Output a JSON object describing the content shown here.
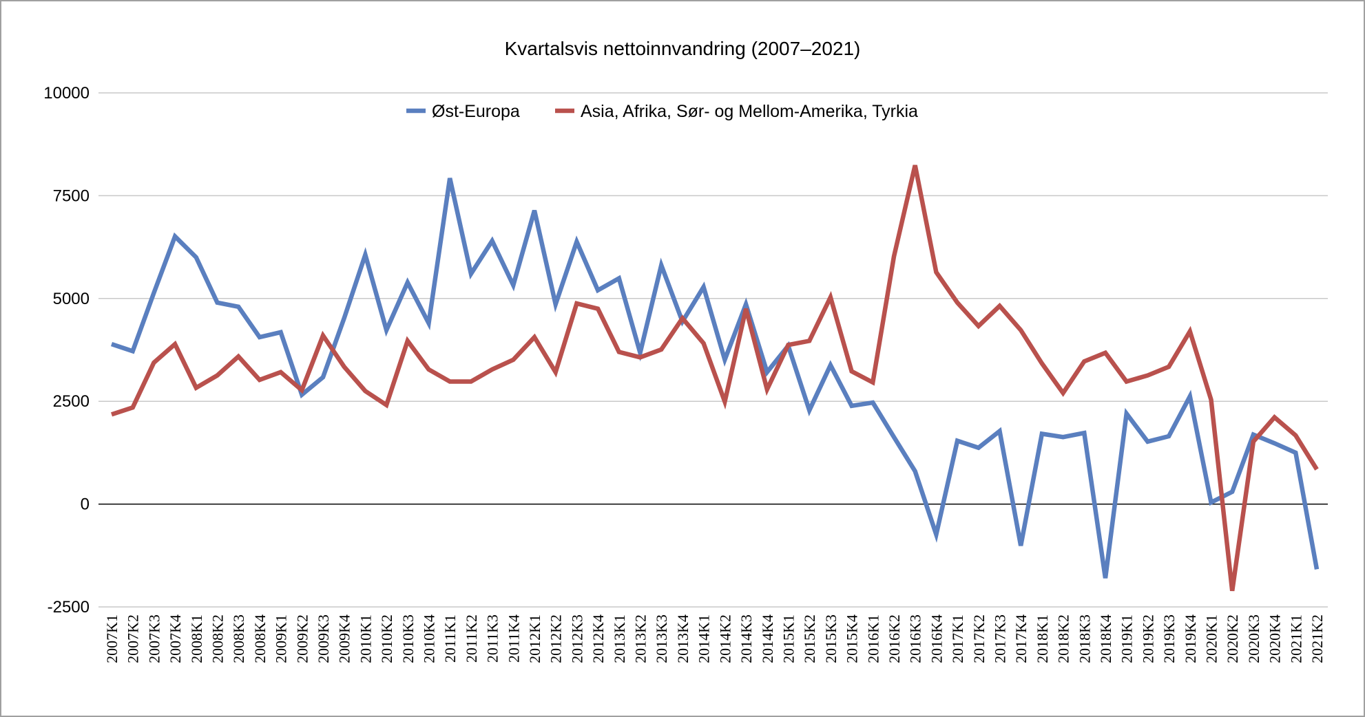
{
  "chart_data": {
    "type": "line",
    "title": "Kvartalsvis nettoinnvandring (2007–2021)",
    "xlabel": "",
    "ylabel": "",
    "ylim": [
      -2500,
      10000
    ],
    "yticks": [
      -2500,
      0,
      2500,
      5000,
      7500,
      10000
    ],
    "grid": true,
    "legend_position": "top-center",
    "categories": [
      "2007K1",
      "2007K2",
      "2007K3",
      "2007K4",
      "2008K1",
      "2008K2",
      "2008K3",
      "2008K4",
      "2009K1",
      "2009K2",
      "2009K3",
      "2009K4",
      "2010K1",
      "2010K2",
      "2010K3",
      "2010K4",
      "2011K1",
      "2011K2",
      "2011K3",
      "2011K4",
      "2012K1",
      "2012K2",
      "2012K3",
      "2012K4",
      "2013K1",
      "2013K2",
      "2013K3",
      "2013K4",
      "2014K1",
      "2014K2",
      "2014K3",
      "2014K4",
      "2015K1",
      "2015K2",
      "2015K3",
      "2015K4",
      "2016K1",
      "2016K2",
      "2016K3",
      "2016K4",
      "2017K1",
      "2017K2",
      "2017K3",
      "2017K4",
      "2018K1",
      "2018K2",
      "2018K3",
      "2018K4",
      "2019K1",
      "2019K2",
      "2019K3",
      "2019K4",
      "2020K1",
      "2020K2",
      "2020K3",
      "2020K4",
      "2021K1",
      "2021K2"
    ],
    "series": [
      {
        "name": "Øst-Europa",
        "color": "#5a7fbf",
        "values": [
          3890,
          3720,
          5135,
          6510,
          6000,
          4900,
          4800,
          4060,
          4180,
          2660,
          3085,
          4520,
          6065,
          4230,
          5390,
          4400,
          7925,
          5600,
          6400,
          5325,
          7140,
          4860,
          6380,
          5200,
          5490,
          3680,
          5810,
          4440,
          5280,
          3510,
          4860,
          3210,
          3850,
          2280,
          3380,
          2390,
          2470,
          1630,
          800,
          -740,
          1540,
          1370,
          1775,
          -1010,
          1710,
          1630,
          1730,
          -1800,
          2200,
          1520,
          1650,
          2620,
          40,
          300,
          1690,
          1480,
          1250,
          -1585
        ]
      },
      {
        "name": "Asia, Afrika, Sør- og Mellom-Amerika, Tyrkia",
        "color": "#b9514d",
        "values": [
          2180,
          2350,
          3440,
          3890,
          2830,
          3130,
          3590,
          3020,
          3210,
          2770,
          4100,
          3340,
          2750,
          2410,
          3970,
          3275,
          2980,
          2980,
          3275,
          3510,
          4060,
          3210,
          4880,
          4750,
          3700,
          3570,
          3760,
          4520,
          3910,
          2490,
          4750,
          2790,
          3870,
          3970,
          5030,
          3230,
          2960,
          6020,
          8240,
          5640,
          4900,
          4330,
          4820,
          4230,
          3420,
          2700,
          3470,
          3680,
          2980,
          3130,
          3340,
          4200,
          2540,
          -2110,
          1520,
          2110,
          1670,
          845
        ]
      }
    ]
  }
}
